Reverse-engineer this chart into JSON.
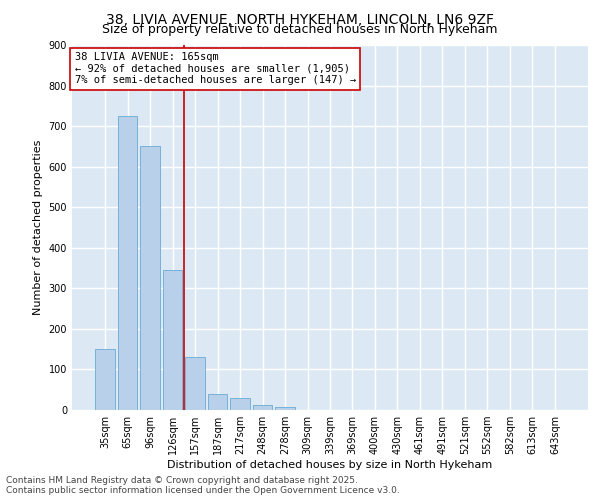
{
  "title_line1": "38, LIVIA AVENUE, NORTH HYKEHAM, LINCOLN, LN6 9ZF",
  "title_line2": "Size of property relative to detached houses in North Hykeham",
  "xlabel": "Distribution of detached houses by size in North Hykeham",
  "ylabel": "Number of detached properties",
  "categories": [
    "35sqm",
    "65sqm",
    "96sqm",
    "126sqm",
    "157sqm",
    "187sqm",
    "217sqm",
    "248sqm",
    "278sqm",
    "309sqm",
    "339sqm",
    "369sqm",
    "400sqm",
    "430sqm",
    "461sqm",
    "491sqm",
    "521sqm",
    "552sqm",
    "582sqm",
    "613sqm",
    "643sqm"
  ],
  "values": [
    150,
    725,
    650,
    345,
    130,
    40,
    30,
    12,
    8,
    0,
    0,
    0,
    0,
    0,
    0,
    0,
    0,
    0,
    0,
    0,
    0
  ],
  "bar_color": "#b8d0ea",
  "bar_edge_color": "#6aaad4",
  "background_color": "#dce9f5",
  "grid_color": "#ffffff",
  "annotation_text": "38 LIVIA AVENUE: 165sqm\n← 92% of detached houses are smaller (1,905)\n7% of semi-detached houses are larger (147) →",
  "annotation_box_color": "#ffffff",
  "annotation_box_edge": "#cc0000",
  "vline_color": "#cc0000",
  "ylim": [
    0,
    900
  ],
  "yticks": [
    0,
    100,
    200,
    300,
    400,
    500,
    600,
    700,
    800,
    900
  ],
  "footnote_line1": "Contains HM Land Registry data © Crown copyright and database right 2025.",
  "footnote_line2": "Contains public sector information licensed under the Open Government Licence v3.0.",
  "title_fontsize": 10,
  "subtitle_fontsize": 9,
  "axis_label_fontsize": 8,
  "tick_fontsize": 7,
  "annotation_fontsize": 7.5,
  "footnote_fontsize": 6.5
}
